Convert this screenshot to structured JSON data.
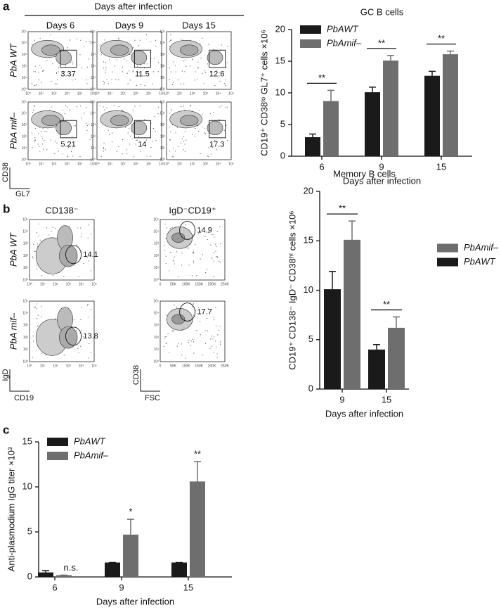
{
  "panel_labels": [
    "a",
    "b",
    "c"
  ],
  "flow_a": {
    "header": "Days after infection",
    "columns": [
      "Days 6",
      "Days 9",
      "Days 15"
    ],
    "rows": [
      "PbA WT",
      "PbA mif–"
    ],
    "gates": [
      [
        3.37,
        11.5,
        12.6
      ],
      [
        5.21,
        14,
        17.3
      ]
    ],
    "y_axis": "CD38",
    "x_axis": "GL7",
    "ticks": [
      "10⁰",
      "10¹",
      "10²",
      "10³",
      "10⁴",
      "10⁵"
    ]
  },
  "flow_b": {
    "columns": [
      "CD138⁻",
      "IgD⁻CD19⁺"
    ],
    "rows": [
      "PbA WT",
      "PbA mif–"
    ],
    "gates": [
      [
        14.1,
        14.9
      ],
      [
        13.8,
        17.7
      ]
    ],
    "axes": [
      {
        "y": "IgD",
        "x": "CD19"
      },
      {
        "y": "CD38",
        "x": "FSC"
      }
    ],
    "log_ticks": [
      "10⁰",
      "10¹",
      "10²",
      "10³",
      "10⁴",
      "10⁵"
    ],
    "fsc_ticks": [
      "0",
      "50K",
      "100K",
      "150K",
      "200K",
      "250K"
    ]
  },
  "chart_data": [
    {
      "type": "bar",
      "title": "GC B cells",
      "x_label": "Days after infection",
      "y_label": "CD19⁺ CD38ˡᵒ GL7⁺ cells ×10⁶",
      "categories": [
        "6",
        "9",
        "15"
      ],
      "series": [
        {
          "name": "PbAWT",
          "color": "#1a1a1a",
          "values": [
            3.0,
            10.1,
            12.7
          ],
          "errors": [
            0.5,
            0.8,
            0.7
          ]
        },
        {
          "name": "PbAmif–",
          "color": "#6e6e6e",
          "values": [
            8.7,
            15.1,
            16.1
          ],
          "errors": [
            1.7,
            0.8,
            0.5
          ]
        }
      ],
      "significance": [
        "**",
        "**",
        "**"
      ],
      "significance_bracket": true,
      "ylim": [
        0,
        20
      ],
      "yticks": [
        0,
        5,
        10,
        15,
        20
      ],
      "legend": "upper left",
      "legend_reverse": false
    },
    {
      "type": "bar",
      "title": "Memory B cells",
      "x_label": "Days after infection",
      "y_label": "CD19⁺ CD138⁻ IgD⁻ CD38ʰⁱ cells ×10⁶",
      "categories": [
        "9",
        "15"
      ],
      "series": [
        {
          "name": "PbAWT",
          "color": "#1a1a1a",
          "values": [
            10.1,
            4.0
          ],
          "errors": [
            1.8,
            0.5
          ]
        },
        {
          "name": "PbAmif–",
          "color": "#6e6e6e",
          "values": [
            15.1,
            6.2
          ],
          "errors": [
            1.9,
            1.1
          ]
        }
      ],
      "significance": [
        "**",
        "**"
      ],
      "significance_bracket": true,
      "ylim": [
        0,
        20
      ],
      "yticks": [
        0,
        5,
        10,
        15,
        20
      ],
      "legend": "right",
      "legend_reverse": true
    },
    {
      "type": "bar",
      "x_label": "Days after infection",
      "y_label": "Anti-plasmodium IgG titer ×10³",
      "categories": [
        "6",
        "9",
        "15"
      ],
      "series": [
        {
          "name": "PbAWT",
          "color": "#1a1a1a",
          "values": [
            0.5,
            1.6,
            1.6
          ],
          "errors": [
            0.2,
            0,
            0
          ]
        },
        {
          "name": "PbAmif–",
          "color": "#6e6e6e",
          "values": [
            0.2,
            4.7,
            10.6
          ],
          "errors": [
            0,
            1.7,
            2.2
          ]
        }
      ],
      "significance": [
        "n.s.",
        "*",
        "**"
      ],
      "significance_bracket": false,
      "ylim": [
        0,
        15
      ],
      "yticks": [
        0,
        5,
        10,
        15
      ],
      "legend": "upper left",
      "legend_reverse": false
    }
  ]
}
